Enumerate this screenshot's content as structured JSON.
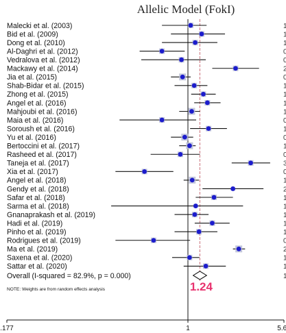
{
  "chart_data": {
    "type": "forest",
    "title": "Allelic Model (FokI)",
    "x_scale": "log",
    "xlim": [
      0.177,
      5.64
    ],
    "x_ticks": [
      {
        "value": 0.177,
        "label": ".177"
      },
      {
        "value": 1,
        "label": "1"
      },
      {
        "value": 5.64,
        "label": "5.64"
      }
    ],
    "studies": [
      {
        "label": "Malecki et al. (2003)",
        "or": 1.05,
        "lower": 0.78,
        "upper": 1.4,
        "weight": 3
      },
      {
        "label": "Bid et al. (2009)",
        "or": 1.28,
        "lower": 0.85,
        "upper": 1.95,
        "weight": 3
      },
      {
        "label": "Dong  et al. (2010)",
        "or": 1.14,
        "lower": 0.78,
        "upper": 1.7,
        "weight": 3
      },
      {
        "label": "Al-Daghri et al. (2012)",
        "or": 0.78,
        "lower": 0.63,
        "upper": 0.97,
        "weight": 3
      },
      {
        "label": "Vedralova et al. (2012)",
        "or": 0.94,
        "lower": 0.64,
        "upper": 1.38,
        "weight": 3
      },
      {
        "label": "Mackawy et al. (2014)",
        "or": 2.36,
        "lower": 1.55,
        "upper": 3.6,
        "weight": 3
      },
      {
        "label": "Jia et al. (2015)",
        "or": 0.95,
        "lower": 0.85,
        "upper": 1.05,
        "weight": 4
      },
      {
        "label": "Shab-Bidar et al. (2015)",
        "or": 1.12,
        "lower": 0.88,
        "upper": 1.42,
        "weight": 3
      },
      {
        "label": "Zhong et al. (2015)",
        "or": 1.32,
        "lower": 1.06,
        "upper": 1.65,
        "weight": 3
      },
      {
        "label": "Angel et al. (2016)",
        "or": 1.42,
        "lower": 1.12,
        "upper": 1.8,
        "weight": 3
      },
      {
        "label": "Mahjoubi et al. (2016)",
        "or": 1.07,
        "lower": 0.92,
        "upper": 1.24,
        "weight": 4
      },
      {
        "label": "Maia et al. (2016)",
        "or": 0.78,
        "lower": 0.52,
        "upper": 1.16,
        "weight": 3
      },
      {
        "label": "Soroush et al. (2016)",
        "or": 1.45,
        "lower": 1.04,
        "upper": 2.02,
        "weight": 3
      },
      {
        "label": "Yu et al. (2016)",
        "or": 0.97,
        "lower": 0.85,
        "upper": 1.1,
        "weight": 4
      },
      {
        "label": "Bertoccini et al. (2017)",
        "or": 1.03,
        "lower": 0.92,
        "upper": 1.15,
        "weight": 4
      },
      {
        "label": "Rasheed et al. (2017)",
        "or": 0.93,
        "lower": 0.7,
        "upper": 1.24,
        "weight": 3
      },
      {
        "label": "Taneja et al. (2017)",
        "or": 3.1,
        "lower": 2.2,
        "upper": 4.4,
        "weight": 3
      },
      {
        "label": "Xia et al. (2017)",
        "or": 0.66,
        "lower": 0.5,
        "upper": 0.87,
        "weight": 3
      },
      {
        "label": "Angel et al. (2018)",
        "or": 1.08,
        "lower": 0.96,
        "upper": 1.22,
        "weight": 4
      },
      {
        "label": "Gendy et al. (2018)",
        "or": 2.25,
        "lower": 1.3,
        "upper": 3.9,
        "weight": 2
      },
      {
        "label": "Safar et al. (2018)",
        "or": 1.6,
        "lower": 1.15,
        "upper": 2.25,
        "weight": 3
      },
      {
        "label": "Sarma et al. (2018)",
        "or": 1.15,
        "lower": 0.48,
        "upper": 2.7,
        "weight": 2
      },
      {
        "label": "Gnanaprakash et al. (2019)",
        "or": 1.13,
        "lower": 0.88,
        "upper": 1.45,
        "weight": 3
      },
      {
        "label": "Hadi et al. (2019)",
        "or": 1.55,
        "lower": 1.13,
        "upper": 2.12,
        "weight": 3
      },
      {
        "label": "Pinho et al. (2019)",
        "or": 1.22,
        "lower": 0.88,
        "upper": 1.7,
        "weight": 3
      },
      {
        "label": "Rodrigues et al. (2019)",
        "or": 0.72,
        "lower": 0.5,
        "upper": 1.04,
        "weight": 3
      },
      {
        "label": "Ma et al. (2019)",
        "or": 2.5,
        "lower": 2.25,
        "upper": 2.8,
        "weight": 4
      },
      {
        "label": "Saxena et al. (2020)",
        "or": 1.03,
        "lower": 0.86,
        "upper": 1.23,
        "weight": 3
      },
      {
        "label": "Sattar et al. (2020)",
        "or": 1.38,
        "lower": 0.96,
        "upper": 1.98,
        "weight": 3
      }
    ],
    "overall": {
      "label": "Overall  (I-squared = 82.9%, p = 0.000)",
      "or": 1.24,
      "lower": 1.1,
      "upper": 1.4
    },
    "pooled_annotation": "1.24",
    "note": "NOTE: Weights are from random effects analysis",
    "right_column_fragments": [
      "1",
      "1",
      "1",
      "0",
      "0",
      "2",
      "0",
      "1",
      "1",
      "1",
      "1",
      "0",
      "1",
      "0",
      "1",
      "0",
      "3",
      "0",
      "1",
      "2",
      "1",
      "1",
      "1",
      "1",
      "1",
      "0",
      "2",
      "1",
      "1",
      "1"
    ],
    "colors": {
      "marker_box": "#b9bdd6",
      "marker_dot": "#1c1ccc",
      "ci_line": "#111111",
      "pooled_line": "#c9707a",
      "pooled_text": "#e8336f"
    }
  }
}
